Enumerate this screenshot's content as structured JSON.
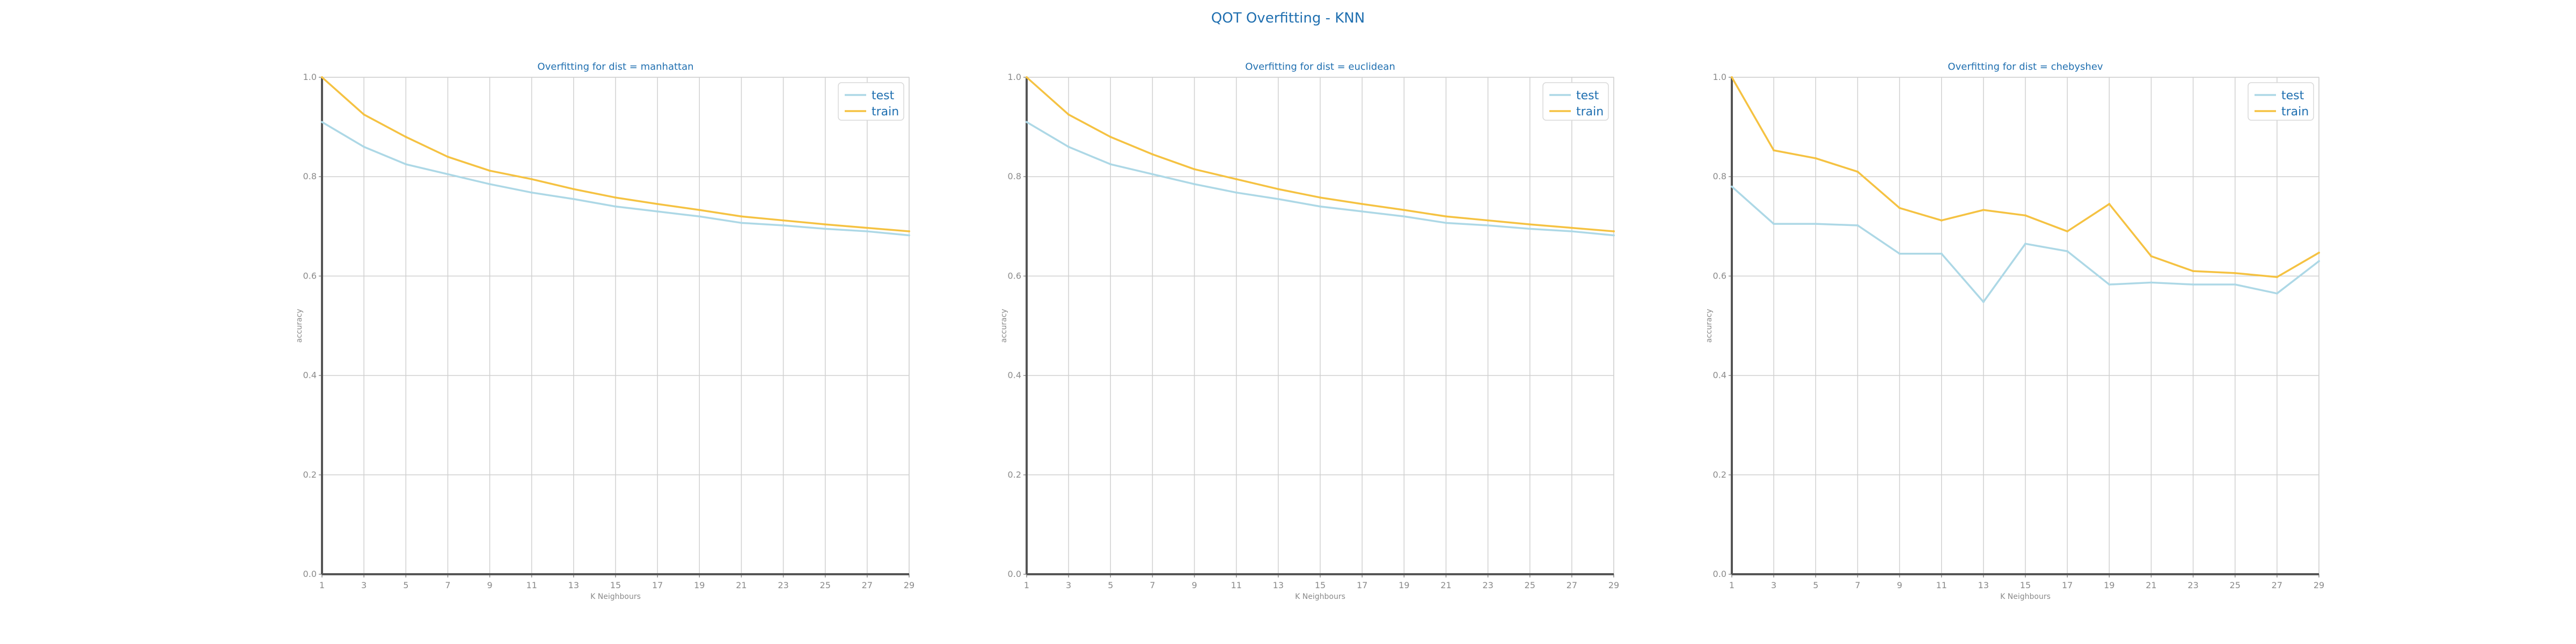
{
  "figure": {
    "title": "QOT Overfitting - KNN"
  },
  "colors": {
    "test": "#add8e6",
    "train": "#f5c242",
    "title": "#1f6fb0",
    "grid": "#d0d0d0",
    "axis": "#555555",
    "tick": "#8a8a8a"
  },
  "chart_data": [
    {
      "type": "line",
      "title": "Overfitting for dist = manhattan",
      "xlabel": "K Neighbours",
      "ylabel": "accuracy",
      "x": [
        1,
        3,
        5,
        7,
        9,
        11,
        13,
        15,
        17,
        19,
        21,
        23,
        25,
        27,
        29
      ],
      "xticks": [
        "1",
        "3",
        "5",
        "7",
        "9",
        "11",
        "13",
        "15",
        "17",
        "19",
        "21",
        "23",
        "25",
        "27",
        "29"
      ],
      "yticks": [
        "0.0",
        "0.2",
        "0.4",
        "0.6",
        "0.8",
        "1.0"
      ],
      "xlim": [
        1,
        29
      ],
      "ylim": [
        0,
        1
      ],
      "grid": true,
      "legend": "top-right",
      "series": [
        {
          "name": "test",
          "values": [
            0.91,
            0.86,
            0.825,
            0.805,
            0.785,
            0.768,
            0.755,
            0.74,
            0.73,
            0.72,
            0.707,
            0.702,
            0.695,
            0.69,
            0.682
          ]
        },
        {
          "name": "train",
          "values": [
            1.0,
            0.925,
            0.88,
            0.84,
            0.812,
            0.795,
            0.775,
            0.758,
            0.745,
            0.733,
            0.72,
            0.712,
            0.704,
            0.697,
            0.69
          ]
        }
      ]
    },
    {
      "type": "line",
      "title": "Overfitting for dist = euclidean",
      "xlabel": "K Neighbours",
      "ylabel": "accuracy",
      "x": [
        1,
        3,
        5,
        7,
        9,
        11,
        13,
        15,
        17,
        19,
        21,
        23,
        25,
        27,
        29
      ],
      "xticks": [
        "1",
        "3",
        "5",
        "7",
        "9",
        "11",
        "13",
        "15",
        "17",
        "19",
        "21",
        "23",
        "25",
        "27",
        "29"
      ],
      "yticks": [
        "0.0",
        "0.2",
        "0.4",
        "0.6",
        "0.8",
        "1.0"
      ],
      "xlim": [
        1,
        29
      ],
      "ylim": [
        0,
        1
      ],
      "grid": true,
      "legend": "top-right",
      "series": [
        {
          "name": "test",
          "values": [
            0.91,
            0.86,
            0.825,
            0.805,
            0.785,
            0.768,
            0.755,
            0.74,
            0.73,
            0.72,
            0.707,
            0.702,
            0.695,
            0.69,
            0.682
          ]
        },
        {
          "name": "train",
          "values": [
            1.0,
            0.925,
            0.88,
            0.845,
            0.815,
            0.795,
            0.775,
            0.758,
            0.745,
            0.733,
            0.72,
            0.712,
            0.704,
            0.697,
            0.69
          ]
        }
      ]
    },
    {
      "type": "line",
      "title": "Overfitting for dist = chebyshev",
      "xlabel": "K Neighbours",
      "ylabel": "accuracy",
      "x": [
        1,
        3,
        5,
        7,
        9,
        11,
        13,
        15,
        17,
        19,
        21,
        23,
        25,
        27,
        29
      ],
      "xticks": [
        "1",
        "3",
        "5",
        "7",
        "9",
        "11",
        "13",
        "15",
        "17",
        "19",
        "21",
        "23",
        "25",
        "27",
        "29"
      ],
      "yticks": [
        "0.0",
        "0.2",
        "0.4",
        "0.6",
        "0.8",
        "1.0"
      ],
      "xlim": [
        1,
        29
      ],
      "ylim": [
        0,
        1
      ],
      "grid": true,
      "legend": "top-right",
      "series": [
        {
          "name": "test",
          "values": [
            0.78,
            0.705,
            0.705,
            0.702,
            0.645,
            0.645,
            0.548,
            0.665,
            0.65,
            0.583,
            0.587,
            0.583,
            0.583,
            0.565,
            0.63
          ]
        },
        {
          "name": "train",
          "values": [
            1.0,
            0.853,
            0.837,
            0.81,
            0.737,
            0.712,
            0.733,
            0.722,
            0.69,
            0.745,
            0.64,
            0.61,
            0.606,
            0.598,
            0.647
          ]
        }
      ]
    }
  ]
}
